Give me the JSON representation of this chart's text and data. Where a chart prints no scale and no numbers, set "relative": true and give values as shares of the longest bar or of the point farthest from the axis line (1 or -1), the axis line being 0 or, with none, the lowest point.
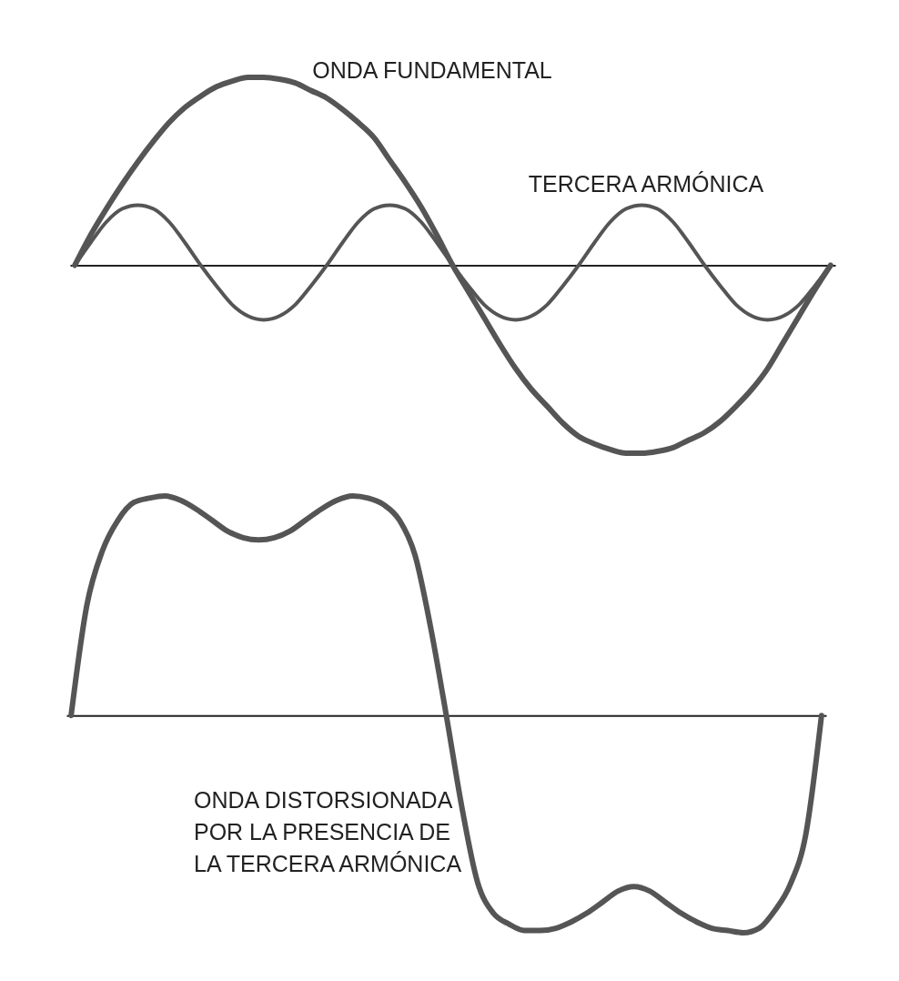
{
  "chart_data": [
    {
      "type": "line",
      "relative": true,
      "categories": [
        null,
        null,
        null,
        null,
        null,
        null,
        null,
        null,
        null,
        null,
        null,
        null,
        null,
        null,
        null,
        null,
        null,
        null,
        null,
        null,
        null,
        null,
        null,
        null,
        null,
        null,
        null,
        null,
        null,
        null,
        null,
        null,
        null,
        null,
        null,
        null,
        null,
        null,
        null,
        null,
        null,
        null,
        null,
        null,
        null,
        null,
        null,
        null,
        null
      ],
      "series": [
        {
          "name": "ONDA FUNDAMENTAL",
          "color": "#555555",
          "values": [
            0,
            0.16,
            0.3,
            0.43,
            0.55,
            0.66,
            0.76,
            0.84,
            0.9,
            0.95,
            0.98,
            1.0,
            1.0,
            0.99,
            0.97,
            0.93,
            0.89,
            0.83,
            0.76,
            0.68,
            0.56,
            0.44,
            0.31,
            0.16,
            0,
            -0.14,
            -0.28,
            -0.42,
            -0.55,
            -0.66,
            -0.75,
            -0.84,
            -0.91,
            -0.95,
            -0.98,
            -1.0,
            -1.0,
            -0.99,
            -0.97,
            -0.93,
            -0.89,
            -0.83,
            -0.75,
            -0.66,
            -0.55,
            -0.41,
            -0.27,
            -0.13,
            0
          ]
        },
        {
          "name": "TERCERA ARMÓNICA",
          "color": "#555555",
          "values": [
            0,
            0.12,
            0.23,
            0.3,
            0.32,
            0.3,
            0.23,
            0.12,
            0,
            -0.11,
            -0.21,
            -0.27,
            -0.29,
            -0.27,
            -0.21,
            -0.11,
            0,
            0.12,
            0.23,
            0.3,
            0.32,
            0.3,
            0.23,
            0.12,
            0,
            -0.11,
            -0.21,
            -0.27,
            -0.29,
            -0.27,
            -0.21,
            -0.11,
            0,
            0.12,
            0.23,
            0.3,
            0.32,
            0.3,
            0.23,
            0.12,
            0,
            -0.11,
            -0.21,
            -0.27,
            -0.29,
            -0.27,
            -0.21,
            -0.11,
            0
          ]
        }
      ]
    },
    {
      "type": "line",
      "relative": true,
      "categories": [
        null,
        null,
        null,
        null,
        null,
        null,
        null,
        null,
        null,
        null,
        null,
        null,
        null,
        null,
        null,
        null,
        null,
        null,
        null,
        null,
        null,
        null,
        null,
        null,
        null,
        null,
        null,
        null,
        null,
        null,
        null,
        null,
        null,
        null,
        null,
        null,
        null,
        null,
        null,
        null,
        null,
        null,
        null,
        null,
        null,
        null,
        null,
        null,
        null
      ],
      "series": [
        {
          "name": "ONDA DISTORSIONADA POR LA PRESENCIA DE LA TERCERA ARMÓNICA",
          "color": "#555555",
          "values": [
            0,
            0.5,
            0.75,
            0.89,
            0.97,
            0.99,
            1.0,
            0.98,
            0.94,
            0.89,
            0.84,
            0.81,
            0.8,
            0.81,
            0.84,
            0.89,
            0.94,
            0.98,
            1.0,
            0.99,
            0.96,
            0.89,
            0.73,
            0.4,
            0,
            -0.42,
            -0.76,
            -0.9,
            -0.95,
            -0.98,
            -0.98,
            -0.97,
            -0.94,
            -0.9,
            -0.85,
            -0.8,
            -0.78,
            -0.8,
            -0.85,
            -0.9,
            -0.94,
            -0.97,
            -0.98,
            -0.99,
            -0.97,
            -0.89,
            -0.77,
            -0.54,
            0
          ]
        }
      ]
    }
  ]
}
